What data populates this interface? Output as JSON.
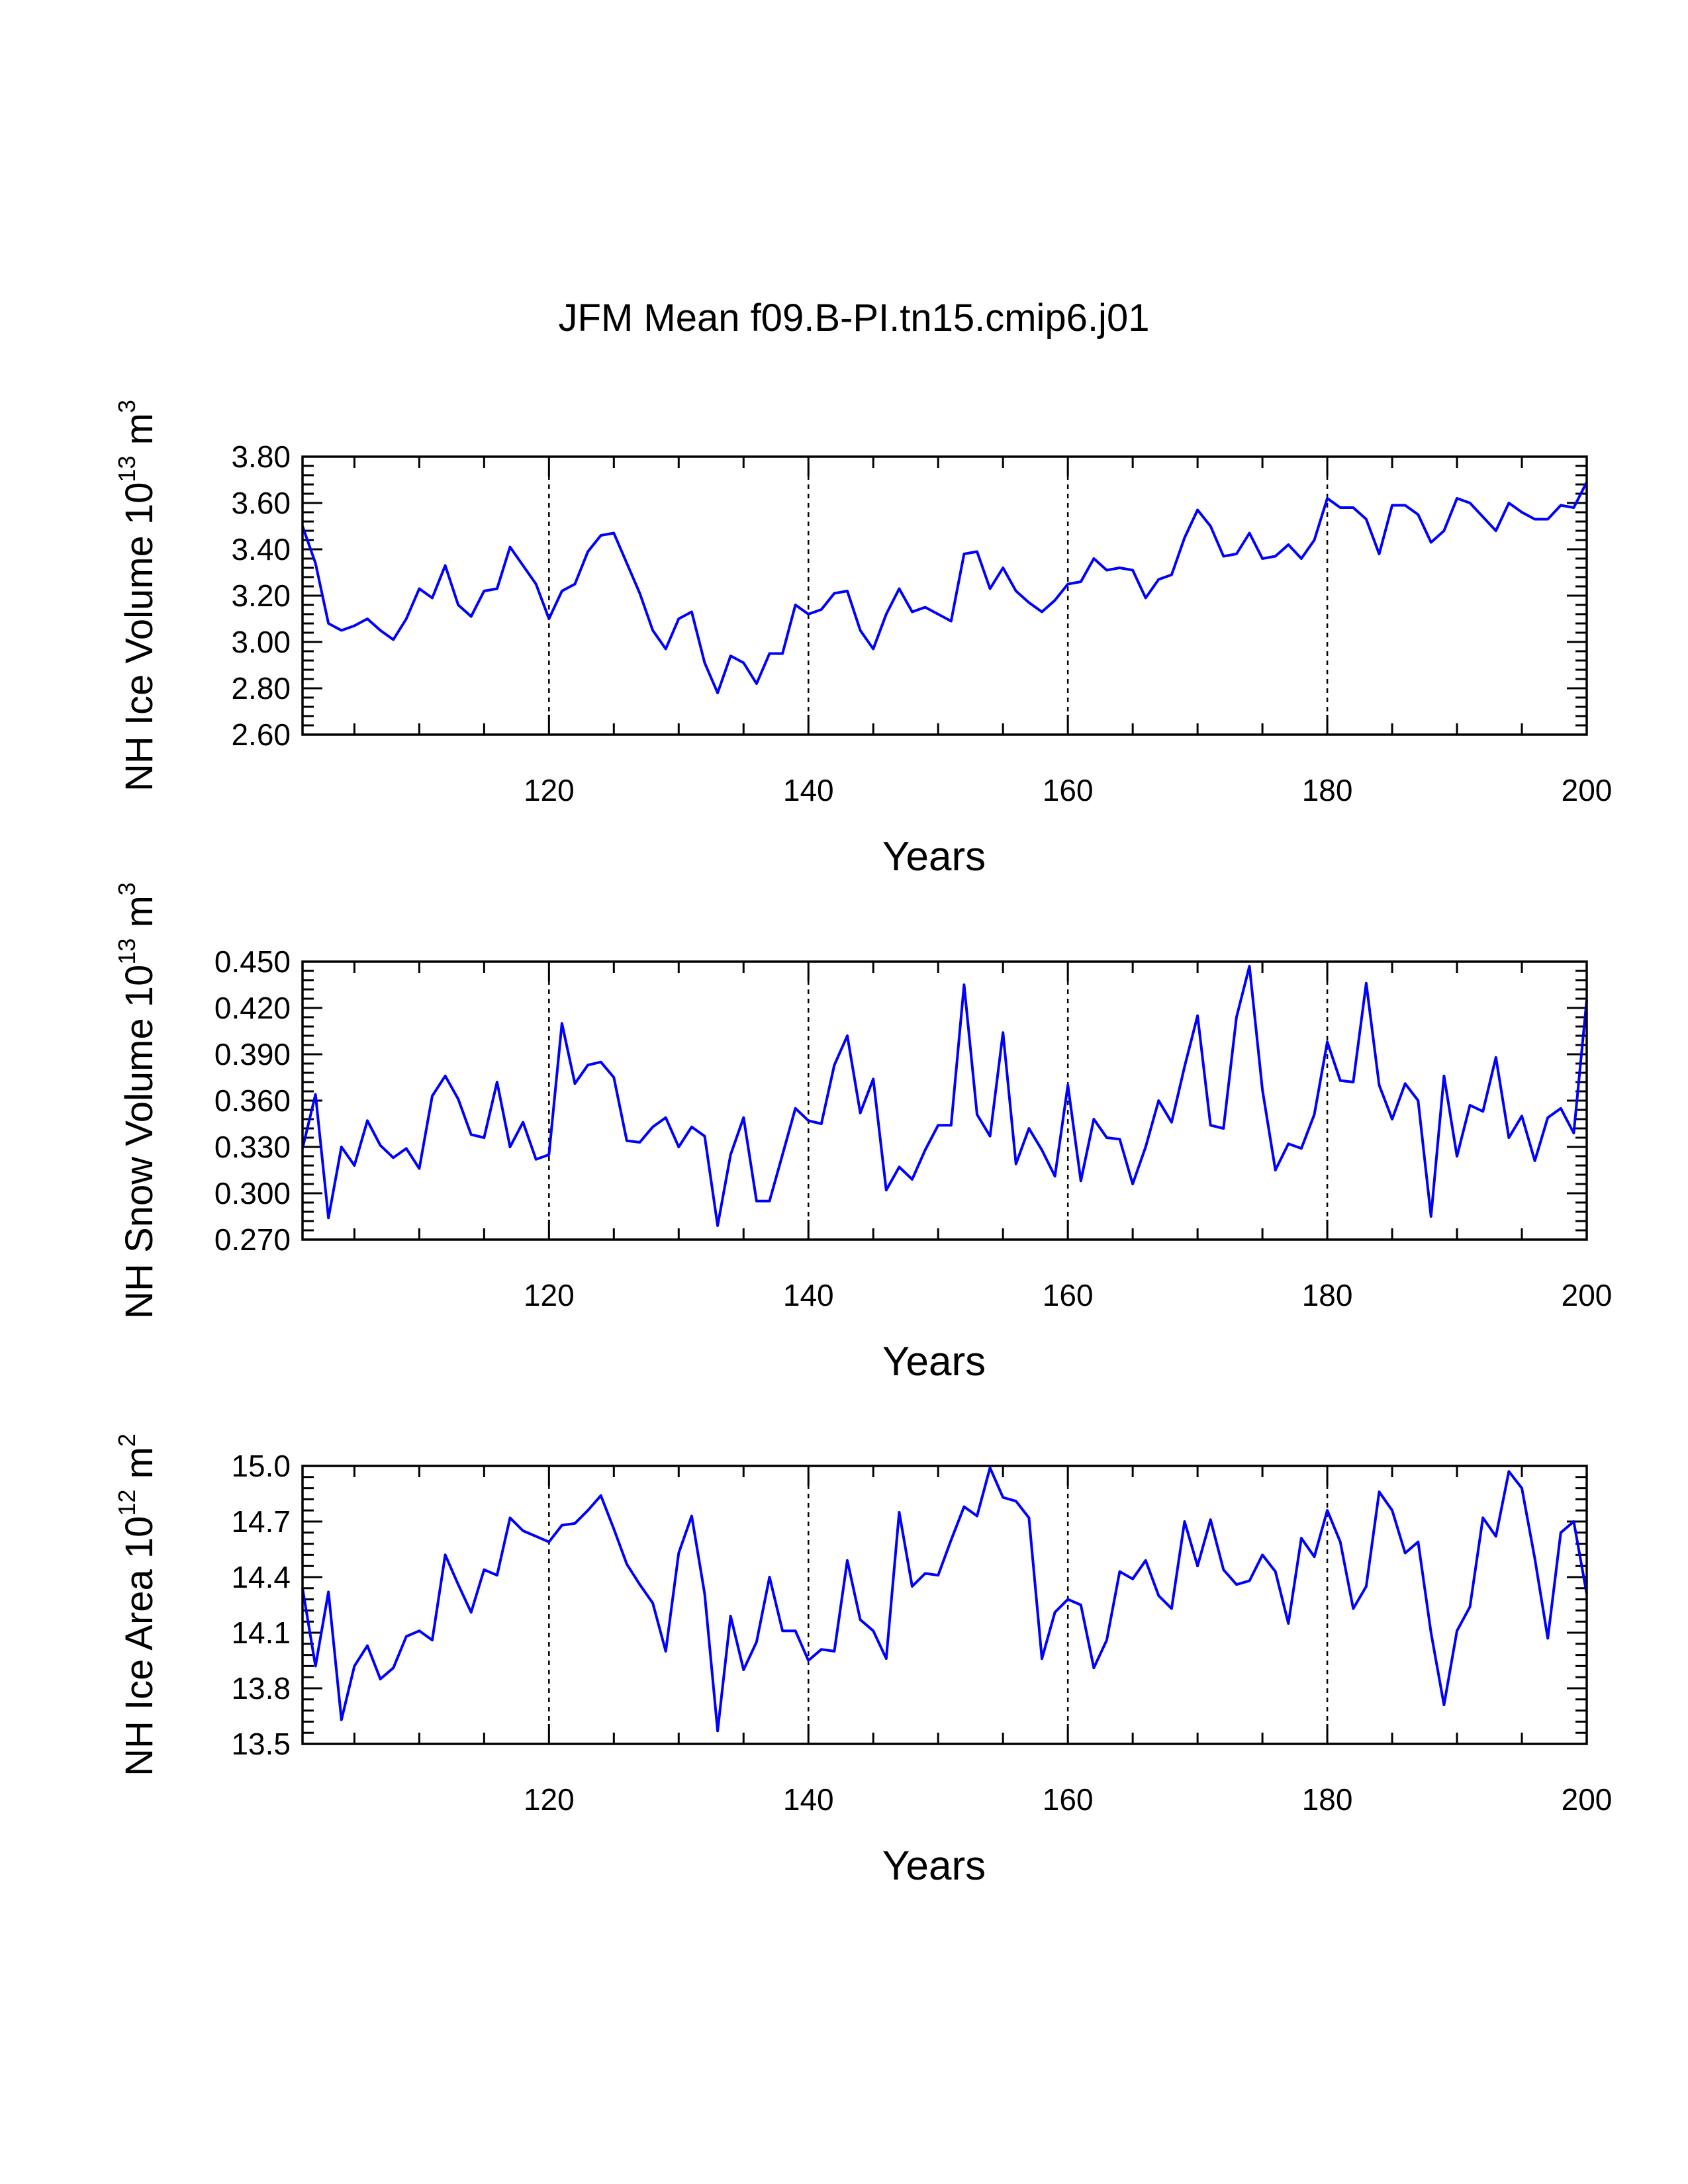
{
  "title": "JFM Mean f09.B-PI.tn15.cmip6.j01",
  "colors": {
    "line": "#0000ff",
    "axis": "#000000",
    "gridline": "#000000"
  },
  "chart_data": [
    {
      "type": "line",
      "ylabel": "NH Ice Volume 10^13 m^3",
      "ylabel_parts": {
        "text": "NH Ice Volume 10",
        "exp1": "13",
        "unit": " m",
        "exp2": "3"
      },
      "xlabel": "Years",
      "xlim": [
        101,
        200
      ],
      "ylim": [
        2.6,
        3.8
      ],
      "ymajor": 0.2,
      "ydecimals": 2,
      "xticks": [
        120,
        140,
        160,
        180,
        200
      ],
      "vlines": [
        120,
        140,
        160,
        180
      ],
      "grid": false,
      "x_start": 101,
      "values": [
        3.5,
        3.34,
        3.08,
        3.05,
        3.07,
        3.1,
        3.05,
        3.01,
        3.1,
        3.23,
        3.19,
        3.33,
        3.16,
        3.11,
        3.22,
        3.23,
        3.41,
        3.33,
        3.25,
        3.1,
        3.22,
        3.25,
        3.39,
        3.46,
        3.47,
        3.34,
        3.21,
        3.05,
        2.97,
        3.1,
        3.13,
        2.91,
        2.78,
        2.94,
        2.91,
        2.82,
        2.95,
        2.95,
        3.16,
        3.12,
        3.14,
        3.21,
        3.22,
        3.05,
        2.97,
        3.12,
        3.23,
        3.13,
        3.15,
        3.12,
        3.09,
        3.38,
        3.39,
        3.23,
        3.32,
        3.22,
        3.17,
        3.13,
        3.18,
        3.25,
        3.26,
        3.36,
        3.31,
        3.32,
        3.31,
        3.19,
        3.27,
        3.29,
        3.45,
        3.57,
        3.5,
        3.37,
        3.38,
        3.47,
        3.36,
        3.37,
        3.42,
        3.36,
        3.44,
        3.62,
        3.58,
        3.58,
        3.53,
        3.38,
        3.59,
        3.59,
        3.55,
        3.43,
        3.48,
        3.62,
        3.6,
        3.54,
        3.48,
        3.6,
        3.56,
        3.53,
        3.53,
        3.59,
        3.58,
        3.69
      ]
    },
    {
      "type": "line",
      "ylabel": "NH Snow Volume 10^13 m^3",
      "ylabel_parts": {
        "text": "NH Snow Volume 10",
        "exp1": "13",
        "unit": " m",
        "exp2": "3"
      },
      "xlabel": "Years",
      "xlim": [
        101,
        200
      ],
      "ylim": [
        0.27,
        0.45
      ],
      "ymajor": 0.03,
      "ydecimals": 3,
      "xticks": [
        120,
        140,
        160,
        180,
        200
      ],
      "vlines": [
        120,
        140,
        160,
        180
      ],
      "grid": false,
      "x_start": 101,
      "values": [
        0.329,
        0.364,
        0.284,
        0.33,
        0.318,
        0.347,
        0.331,
        0.323,
        0.329,
        0.316,
        0.363,
        0.376,
        0.361,
        0.338,
        0.336,
        0.372,
        0.33,
        0.346,
        0.322,
        0.325,
        0.41,
        0.371,
        0.383,
        0.385,
        0.375,
        0.334,
        0.333,
        0.343,
        0.349,
        0.33,
        0.343,
        0.337,
        0.279,
        0.325,
        0.349,
        0.295,
        0.295,
        0.325,
        0.355,
        0.347,
        0.345,
        0.383,
        0.402,
        0.352,
        0.374,
        0.302,
        0.317,
        0.309,
        0.328,
        0.344,
        0.344,
        0.435,
        0.351,
        0.337,
        0.404,
        0.319,
        0.342,
        0.328,
        0.311,
        0.37,
        0.308,
        0.348,
        0.336,
        0.335,
        0.306,
        0.33,
        0.36,
        0.346,
        0.382,
        0.415,
        0.344,
        0.342,
        0.414,
        0.447,
        0.367,
        0.315,
        0.332,
        0.329,
        0.351,
        0.398,
        0.373,
        0.372,
        0.436,
        0.37,
        0.348,
        0.371,
        0.36,
        0.285,
        0.376,
        0.324,
        0.357,
        0.353,
        0.388,
        0.336,
        0.35,
        0.321,
        0.349,
        0.355,
        0.339,
        0.425
      ]
    },
    {
      "type": "line",
      "ylabel": "NH Ice Area 10^12 m^2",
      "ylabel_parts": {
        "text": "NH Ice Area 10",
        "exp1": "12",
        "unit": " m",
        "exp2": "2"
      },
      "xlabel": "Years",
      "xlim": [
        101,
        200
      ],
      "ylim": [
        13.5,
        15.0
      ],
      "ymajor": 0.3,
      "ydecimals": 1,
      "xticks": [
        120,
        140,
        160,
        180,
        200
      ],
      "vlines": [
        120,
        140,
        160,
        180
      ],
      "grid": false,
      "x_start": 101,
      "values": [
        14.34,
        13.92,
        14.32,
        13.63,
        13.92,
        14.03,
        13.85,
        13.91,
        14.08,
        14.11,
        14.06,
        14.52,
        14.36,
        14.21,
        14.44,
        14.41,
        14.72,
        14.65,
        14.62,
        14.59,
        14.68,
        14.69,
        14.76,
        14.84,
        14.66,
        14.47,
        14.36,
        14.26,
        14.0,
        14.53,
        14.73,
        14.31,
        13.57,
        14.19,
        13.9,
        14.05,
        14.4,
        14.11,
        14.11,
        13.95,
        14.01,
        14.0,
        14.49,
        14.17,
        14.11,
        13.96,
        14.75,
        14.35,
        14.42,
        14.41,
        14.6,
        14.78,
        14.73,
        14.99,
        14.83,
        14.81,
        14.72,
        13.96,
        14.21,
        14.28,
        14.25,
        13.91,
        14.06,
        14.43,
        14.39,
        14.49,
        14.3,
        14.23,
        14.7,
        14.46,
        14.71,
        14.44,
        14.36,
        14.38,
        14.52,
        14.43,
        14.15,
        14.61,
        14.51,
        14.76,
        14.59,
        14.23,
        14.35,
        14.86,
        14.76,
        14.53,
        14.59,
        14.1,
        13.71,
        14.11,
        14.24,
        14.72,
        14.62,
        14.97,
        14.88,
        14.5,
        14.07,
        14.64,
        14.7,
        14.31
      ]
    }
  ]
}
